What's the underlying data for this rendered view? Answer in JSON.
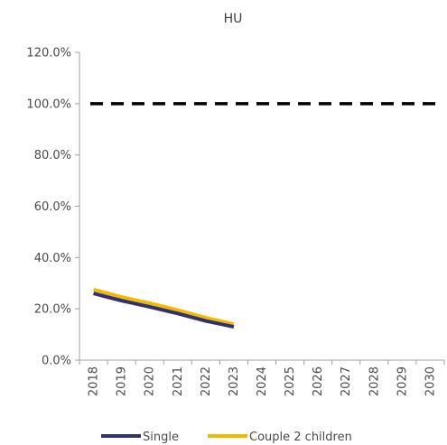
{
  "chart_data": {
    "type": "line",
    "title": "HU",
    "xlabel": "",
    "ylabel": "",
    "categories": [
      "2018",
      "2019",
      "2020",
      "2021",
      "2022",
      "2023",
      "2024",
      "2025",
      "2026",
      "2027",
      "2028",
      "2029",
      "2030"
    ],
    "ylim": [
      0,
      120
    ],
    "yticks": [
      0,
      20,
      40,
      60,
      80,
      100,
      120
    ],
    "ytick_labels": [
      "0.0%",
      "20.0%",
      "40.0%",
      "60.0%",
      "80.0%",
      "100.0%",
      "120.0%"
    ],
    "grid": false,
    "legend_position": "bottom",
    "reference_line": {
      "value": 100,
      "style": "dashed",
      "color": "#000000"
    },
    "series": [
      {
        "name": "Single",
        "color": "#2e3272",
        "values": [
          26.0,
          23.2,
          20.8,
          18.2,
          15.3,
          13.0,
          null,
          null,
          null,
          null,
          null,
          null,
          null
        ]
      },
      {
        "name": "Couple 2 children",
        "color": "#f5b800",
        "values": [
          27.5,
          24.6,
          22.2,
          19.5,
          16.5,
          14.0,
          null,
          null,
          null,
          null,
          null,
          null,
          null
        ]
      }
    ]
  }
}
